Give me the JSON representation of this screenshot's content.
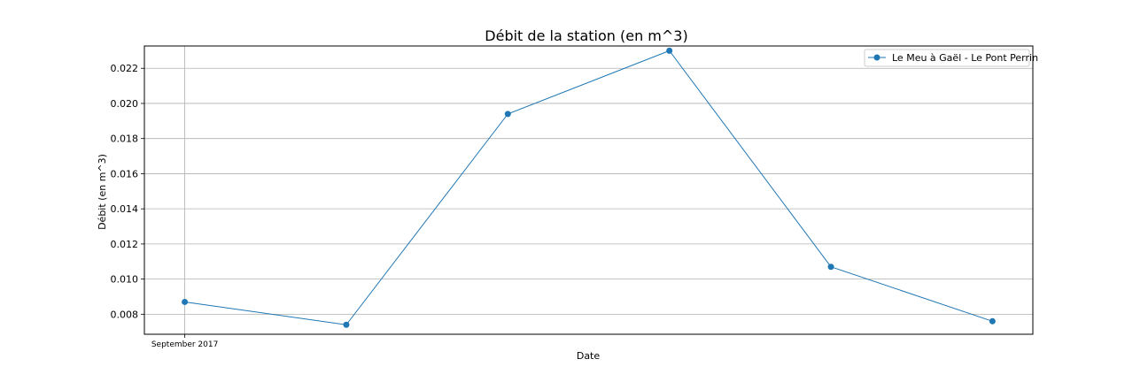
{
  "chart_data": {
    "type": "line",
    "title": "Débit de la station (en m^3)",
    "xlabel": "Date",
    "ylabel": "Débit (en m^3)",
    "x": [
      0,
      1,
      2,
      3,
      4,
      5
    ],
    "x_tick_labels": [
      {
        "x": 0,
        "label": "September 2017"
      }
    ],
    "series": [
      {
        "name": "Le Meu à Gaël - Le Pont Perrin",
        "color": "#1f77b4",
        "values": [
          0.0087,
          0.0074,
          0.0194,
          0.023,
          0.0107,
          0.0076
        ]
      }
    ],
    "xlim": [
      -0.25,
      5.25
    ],
    "ylim": [
      0.00686,
      0.02327
    ],
    "yticks": [
      0.008,
      0.01,
      0.012,
      0.014,
      0.016,
      0.018,
      0.02,
      0.022
    ],
    "ytick_labels": [
      "0.008",
      "0.010",
      "0.012",
      "0.014",
      "0.016",
      "0.018",
      "0.020",
      "0.022"
    ],
    "grid": true,
    "legend_position": "top-right"
  }
}
